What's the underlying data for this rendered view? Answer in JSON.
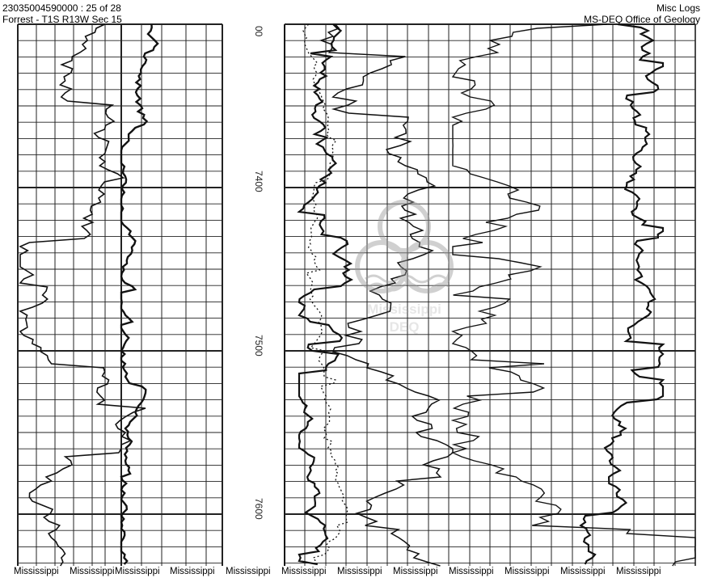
{
  "header": {
    "record_id": "23035004590000 : 25 of 28",
    "location": "Forrest - T1S R13W Sec 15",
    "log_type": "Misc Logs",
    "agency": "MS-DEQ Office of Geology"
  },
  "depth_labels": [
    "00",
    "7400",
    "7500",
    "7600"
  ],
  "watermark": {
    "line1": "Mississippi",
    "line2": "DEQ"
  },
  "footer_items": [
    "Mississippi",
    "Mississippi",
    "Mississippi",
    "Mississippi",
    "Mississippi",
    "Mississippi",
    "Mississippi",
    "Mississippi",
    "Mississippi",
    "Mississippi",
    "Mississippi",
    "Mississippi"
  ]
}
